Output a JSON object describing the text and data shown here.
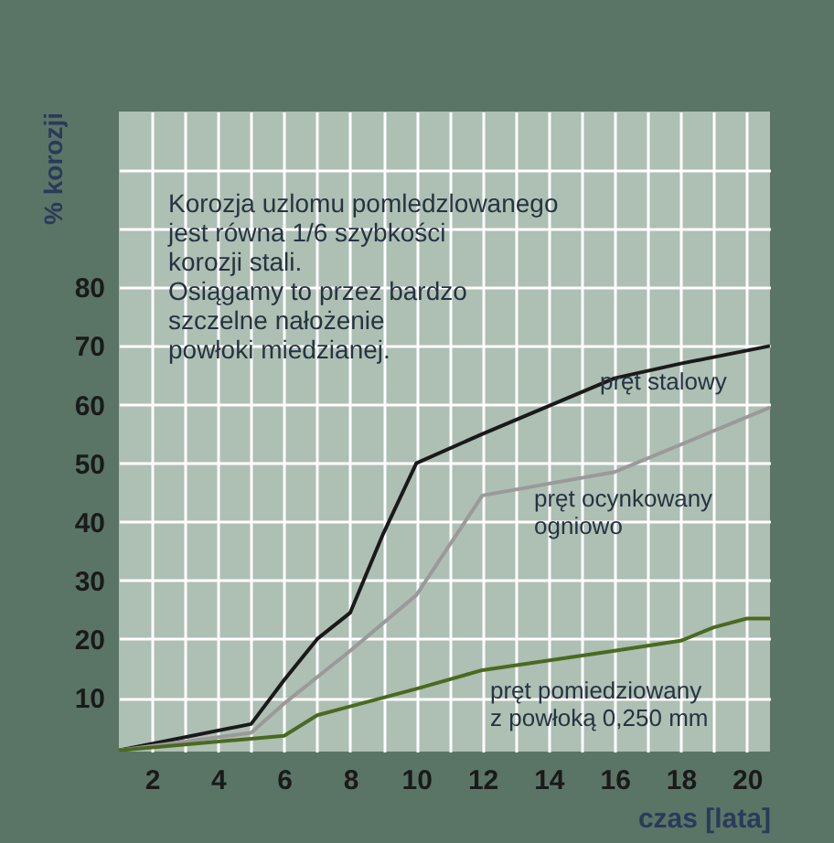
{
  "chart_data": {
    "type": "line",
    "xlabel": "czas [lata]",
    "ylabel": "% korozji",
    "xlim": [
      1,
      20.7
    ],
    "ylim": [
      0.8,
      110
    ],
    "xticks": [
      {
        "value": 3,
        "label": null
      },
      {
        "value": 5,
        "label": null
      },
      {
        "value": 7,
        "label": null
      },
      {
        "value": 9,
        "label": null
      },
      {
        "value": 11,
        "label": null
      },
      {
        "value": 13,
        "label": null
      },
      {
        "value": 15,
        "label": null
      },
      {
        "value": 17,
        "label": null
      },
      {
        "value": 19,
        "label": null
      },
      2,
      4,
      6,
      8,
      10,
      12,
      14,
      16,
      18,
      20
    ],
    "yticks": [
      10,
      20,
      30,
      40,
      50,
      60,
      70,
      80,
      {
        "value": 90,
        "label": null
      },
      {
        "value": 100,
        "label": null
      }
    ],
    "grid": true,
    "legend": false,
    "marker": "none",
    "line_style": "solid",
    "series": [
      {
        "color": "#1a1a1a",
        "x": [
          1,
          5,
          6,
          7,
          8,
          9,
          10,
          12,
          16,
          18,
          20.7
        ],
        "values": [
          1,
          5.5,
          13,
          20,
          24.5,
          38,
          50,
          55,
          64.5,
          67,
          70
        ]
      },
      {
        "color": "#9a9a9a",
        "x": [
          1,
          5,
          6,
          8,
          10,
          12,
          16,
          20.7
        ],
        "values": [
          1,
          4,
          9,
          18,
          27.5,
          44.5,
          48.5,
          59.5
        ]
      },
      {
        "color": "#4a6a20",
        "x": [
          1,
          5,
          6,
          7,
          8,
          10,
          12,
          16,
          18,
          19,
          20,
          20.7
        ],
        "values": [
          1,
          3,
          3.5,
          7,
          8.5,
          11.5,
          14.7,
          18,
          19.7,
          22,
          23.5,
          23.5
        ]
      }
    ],
    "annotations": [
      "Korozja uzlomu pomledzlowanego\njest równa 1/6 szybkości\nkorozji stali.\nOsiągamy to przez bardzo\nszczelne nałożenie\npowłoki miedzianej.",
      "pręt stalowy",
      "pręt ocynkowany\nogniowo",
      "pręt pomiedziowany\nz powłoką 0,250 mm"
    ]
  }
}
